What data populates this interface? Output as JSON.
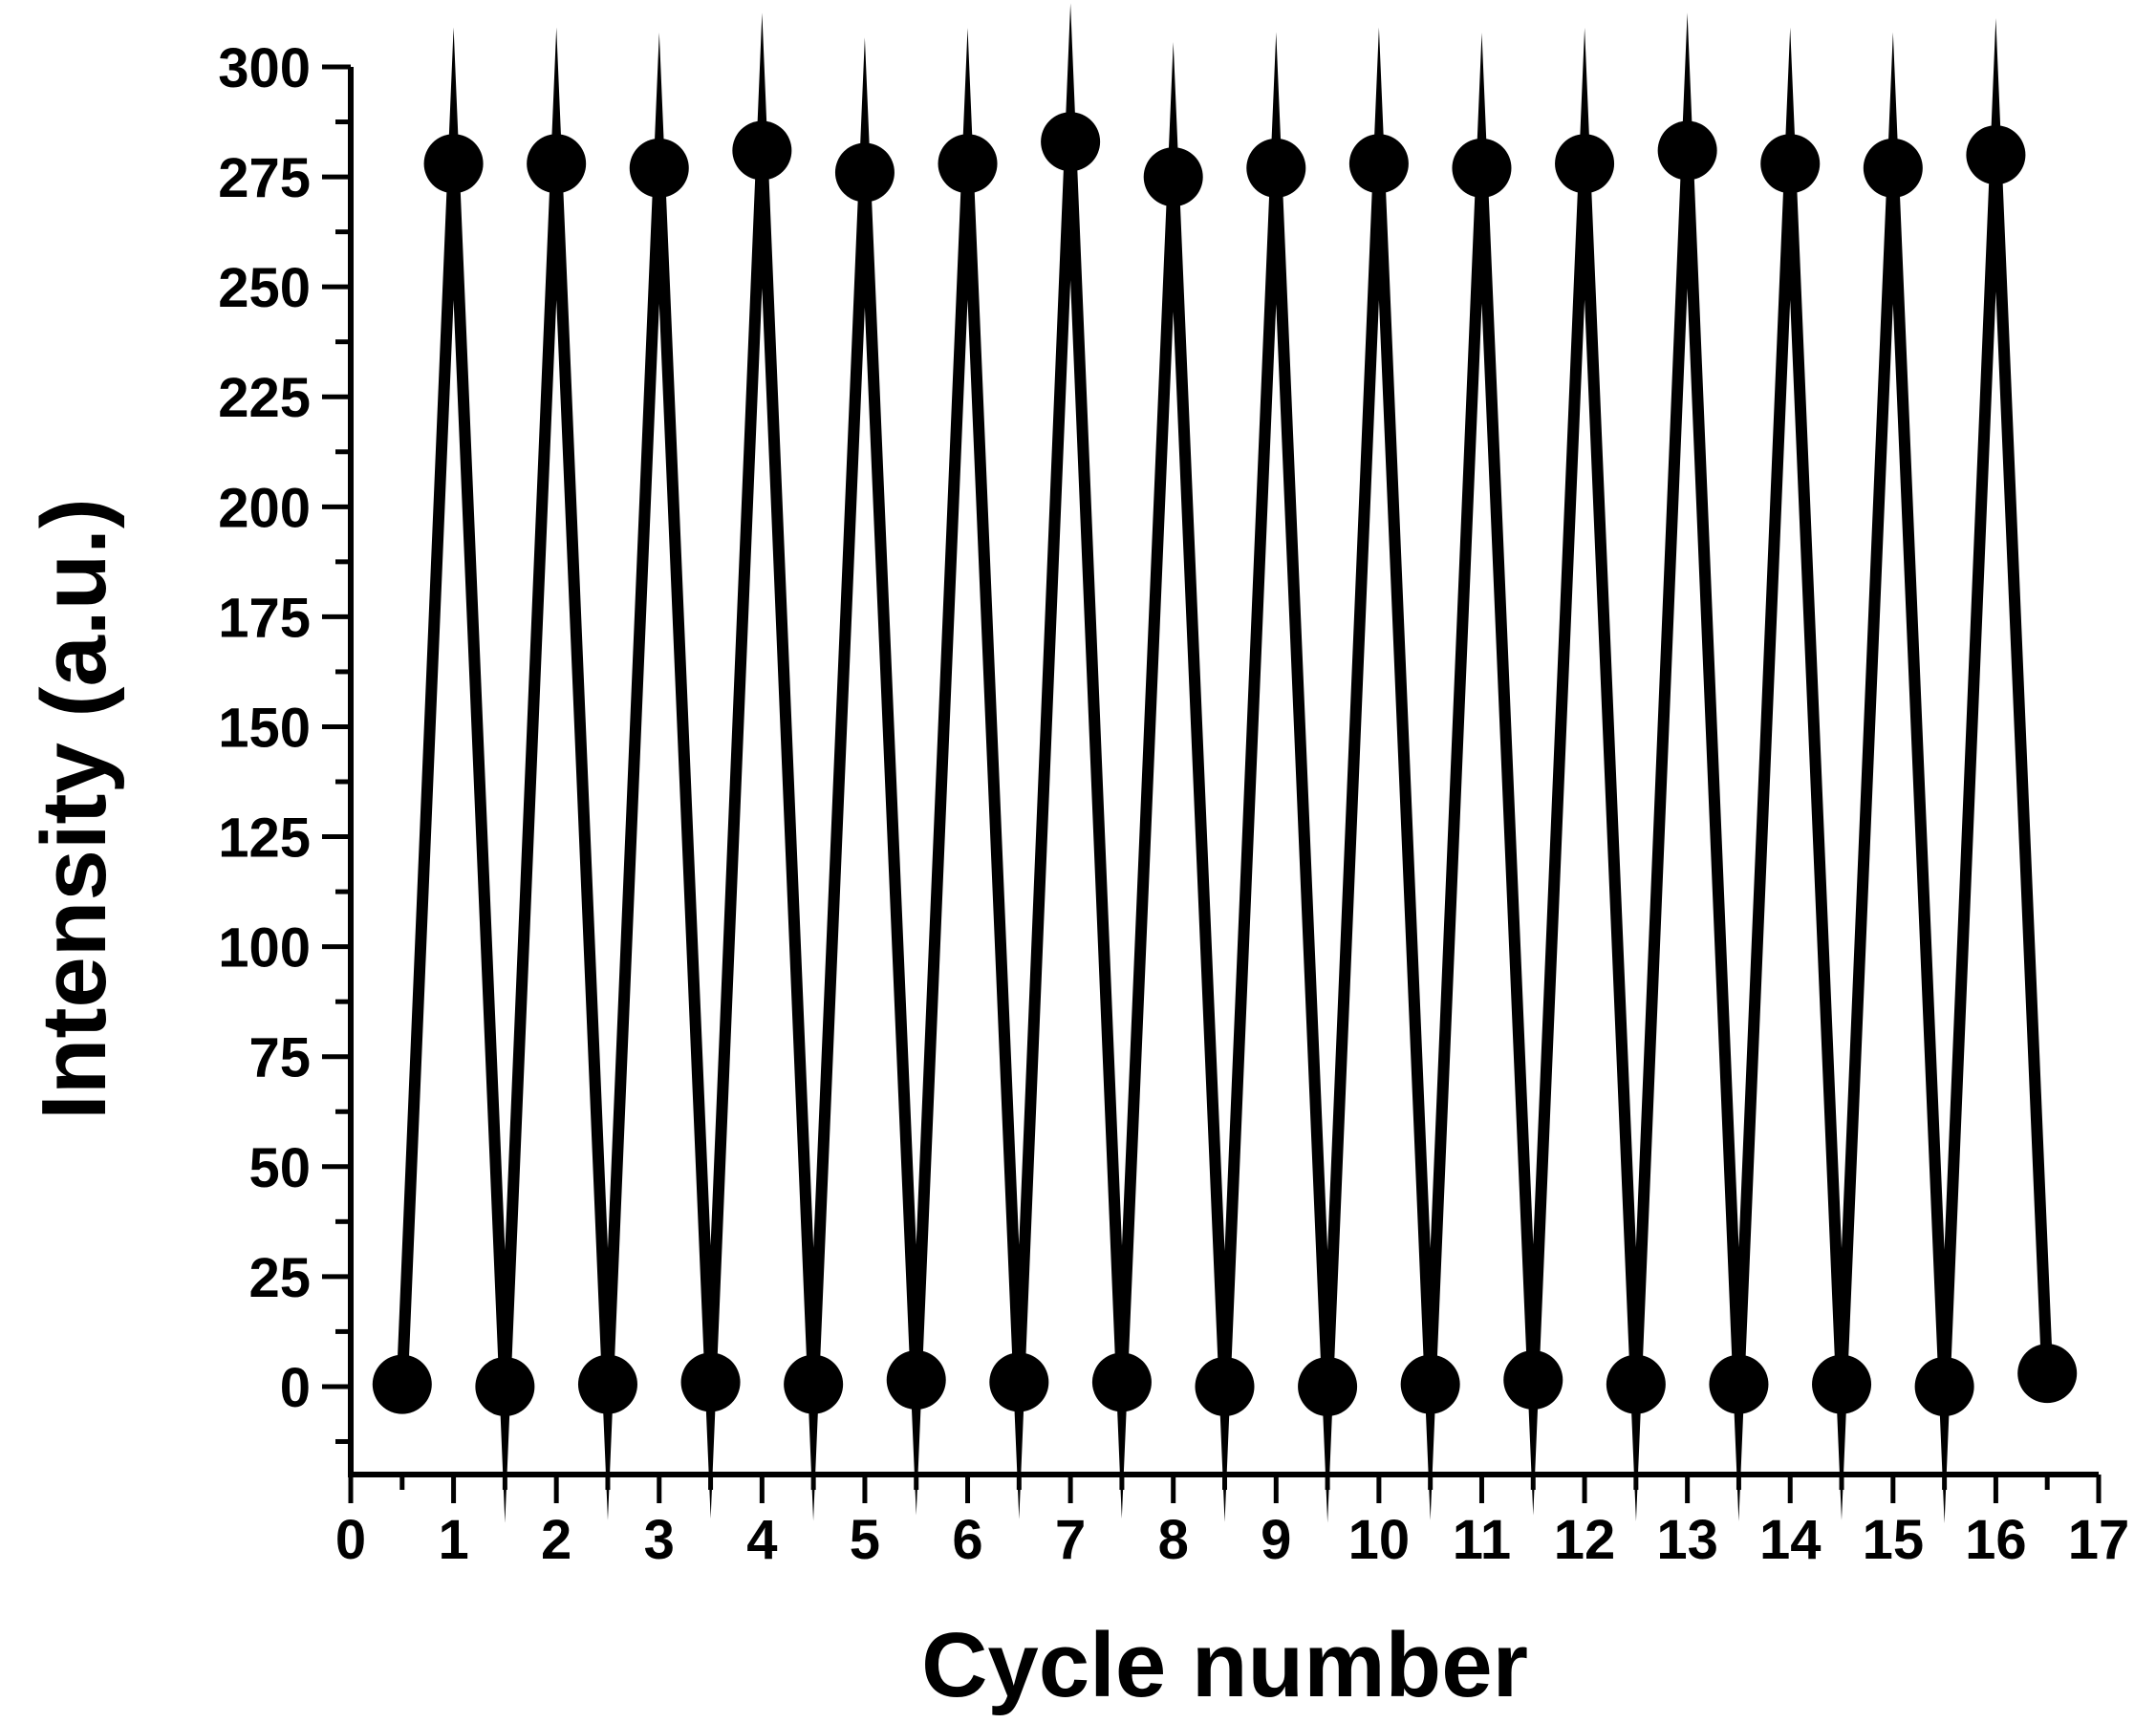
{
  "chart_data": {
    "type": "scatter",
    "xlabel": "Cycle number",
    "ylabel": "Intensity (a.u.)",
    "xlim": [
      0,
      17
    ],
    "ylim": [
      -20,
      300
    ],
    "x_ticks": [
      0,
      1,
      2,
      3,
      4,
      5,
      6,
      7,
      8,
      9,
      10,
      11,
      12,
      13,
      14,
      15,
      16,
      17
    ],
    "y_ticks": [
      0,
      25,
      50,
      75,
      100,
      125,
      150,
      175,
      200,
      225,
      250,
      275,
      300
    ],
    "grid": false,
    "legend": "none",
    "line_style": "solid line connecting markers",
    "marker": "filled circle",
    "color": "#000000",
    "series": [
      {
        "x": [
          0.5,
          1,
          1.5,
          2,
          2.5,
          3,
          3.5,
          4,
          4.5,
          5,
          5.5,
          6,
          6.5,
          7,
          7.5,
          8,
          8.5,
          9,
          9.5,
          10,
          10.5,
          11,
          11.5,
          12,
          12.5,
          13,
          13.5,
          14,
          14.5,
          15,
          15.5,
          16,
          16.5
        ],
        "y": [
          0.5,
          278,
          0,
          278,
          0.5,
          277,
          1,
          281,
          0.5,
          276,
          1.5,
          278,
          1,
          283,
          1,
          275,
          0,
          277,
          0,
          278,
          0.5,
          277,
          1.5,
          278,
          0.5,
          281,
          0.5,
          278,
          0.5,
          277,
          0,
          280,
          3
        ]
      }
    ]
  }
}
